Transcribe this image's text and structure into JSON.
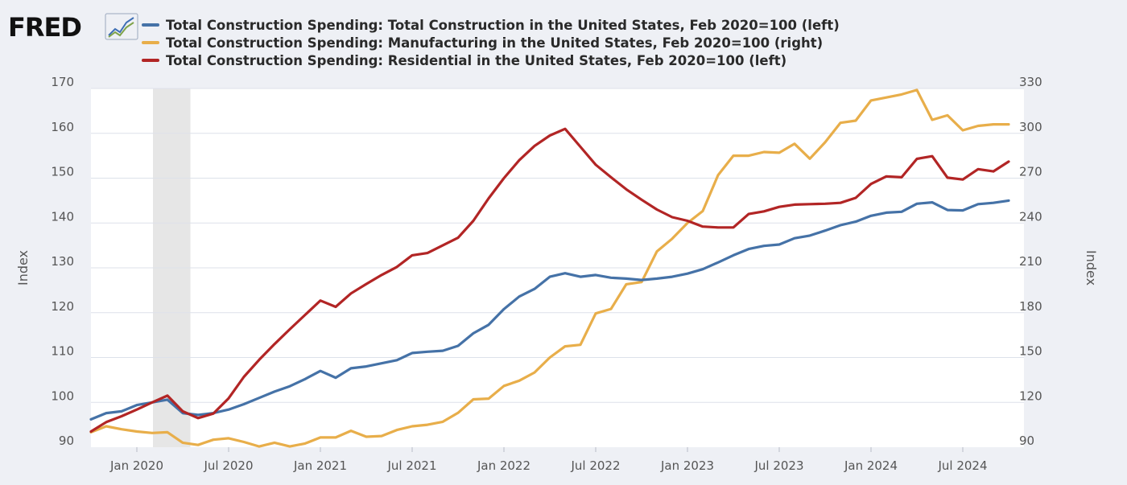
{
  "logo": {
    "text": "FRED",
    "mark": "line-chart-icon"
  },
  "colors": {
    "background": "#eef0f5",
    "plot_bg": "#ffffff",
    "grid": "#dde1ea",
    "recession": "#e6e6e6"
  },
  "chart_data": {
    "type": "line",
    "title": "",
    "xlabel": "",
    "ylabel_left": "Index",
    "ylabel_right": "Index",
    "grid": true,
    "legend_position": "top",
    "recession_shading": {
      "start": "2020-02",
      "end": "2020-04"
    },
    "x_range": [
      "2019-10",
      "2024-11"
    ],
    "x_ticks": [
      "Jan 2020",
      "Jul 2020",
      "Jan 2021",
      "Jul 2021",
      "Jan 2022",
      "Jul 2022",
      "Jan 2023",
      "Jul 2023",
      "Jan 2024",
      "Jul 2024"
    ],
    "y_left": {
      "min": 90,
      "max": 170,
      "ticks": [
        "170",
        "160",
        "150",
        "140",
        "130",
        "120",
        "110",
        "100",
        "90"
      ]
    },
    "y_right": {
      "min": 90,
      "max": 330,
      "ticks": [
        "330",
        "300",
        "270",
        "240",
        "210",
        "180",
        "150",
        "120",
        "90"
      ]
    },
    "x": [
      "2019-10",
      "2019-11",
      "2019-12",
      "2020-01",
      "2020-02",
      "2020-03",
      "2020-04",
      "2020-05",
      "2020-06",
      "2020-07",
      "2020-08",
      "2020-09",
      "2020-10",
      "2020-11",
      "2020-12",
      "2021-01",
      "2021-02",
      "2021-03",
      "2021-04",
      "2021-05",
      "2021-06",
      "2021-07",
      "2021-08",
      "2021-09",
      "2021-10",
      "2021-11",
      "2021-12",
      "2022-01",
      "2022-02",
      "2022-03",
      "2022-04",
      "2022-05",
      "2022-06",
      "2022-07",
      "2022-08",
      "2022-09",
      "2022-10",
      "2022-11",
      "2022-12",
      "2023-01",
      "2023-02",
      "2023-03",
      "2023-04",
      "2023-05",
      "2023-06",
      "2023-07",
      "2023-08",
      "2023-09",
      "2023-10",
      "2023-11",
      "2023-12",
      "2024-01",
      "2024-02",
      "2024-03",
      "2024-04",
      "2024-05",
      "2024-06",
      "2024-07",
      "2024-08",
      "2024-09",
      "2024-10"
    ],
    "series": [
      {
        "name": "Total Construction Spending: Total Construction in the United States, Feb 2020=100 (left)",
        "color": "#4572a7",
        "axis": "left",
        "values": [
          96.2,
          97.6,
          98.0,
          99.4,
          100.0,
          100.6,
          97.6,
          97.2,
          97.6,
          98.4,
          99.6,
          101.0,
          102.4,
          103.6,
          105.2,
          107.0,
          105.5,
          107.6,
          108.0,
          108.7,
          109.4,
          111.0,
          111.3,
          111.5,
          112.6,
          115.4,
          117.3,
          120.8,
          123.6,
          125.3,
          128.0,
          128.8,
          128.0,
          128.4,
          127.8,
          127.6,
          127.3,
          127.6,
          128.0,
          128.7,
          129.7,
          131.2,
          132.8,
          134.2,
          134.9,
          135.2,
          136.6,
          137.2,
          138.3,
          139.5,
          140.3,
          141.6,
          142.3,
          142.5,
          144.3,
          144.6,
          142.9,
          142.8,
          144.2,
          144.5,
          145.0
        ]
      },
      {
        "name": "Total Construction Spending: Manufacturing in the United States, Feb 2020=100 (right)",
        "color": "#e8ae4a",
        "axis": "right",
        "values": [
          100,
          104,
          102,
          100.5,
          99.5,
          100,
          93,
          91.5,
          95,
          96,
          93.5,
          90.5,
          93,
          90.5,
          92.5,
          96.5,
          96.5,
          101,
          97,
          97.5,
          101.5,
          104,
          105,
          107,
          113,
          122,
          122.5,
          131,
          134.5,
          140,
          150,
          157.5,
          158.5,
          179.5,
          182.5,
          199,
          200.5,
          221,
          229.5,
          240,
          248,
          272,
          285,
          285,
          287.5,
          287,
          293,
          283,
          294,
          307,
          308.5,
          322,
          324,
          326,
          329,
          309,
          312,
          302,
          305,
          306,
          306
        ]
      },
      {
        "name": "Total Construction Spending: Residential in the United States, Feb 2020=100 (left)",
        "color": "#b22525",
        "axis": "left",
        "values": [
          93.5,
          95.6,
          96.9,
          98.4,
          100.0,
          101.5,
          98.0,
          96.5,
          97.5,
          100.9,
          105.7,
          109.5,
          113.0,
          116.3,
          119.5,
          122.7,
          121.3,
          124.3,
          126.4,
          128.4,
          130.2,
          132.8,
          133.3,
          135.0,
          136.7,
          140.5,
          145.5,
          150.0,
          154.0,
          157.2,
          159.5,
          161.0,
          157.0,
          153.0,
          150.2,
          147.5,
          145.2,
          143.0,
          141.3,
          140.5,
          139.2,
          139.0,
          139.0,
          142.0,
          142.6,
          143.6,
          144.1,
          144.2,
          144.3,
          144.5,
          145.6,
          148.7,
          150.4,
          150.2,
          154.3,
          154.9,
          150.1,
          149.7,
          152.0,
          151.5,
          153.7
        ]
      }
    ]
  }
}
